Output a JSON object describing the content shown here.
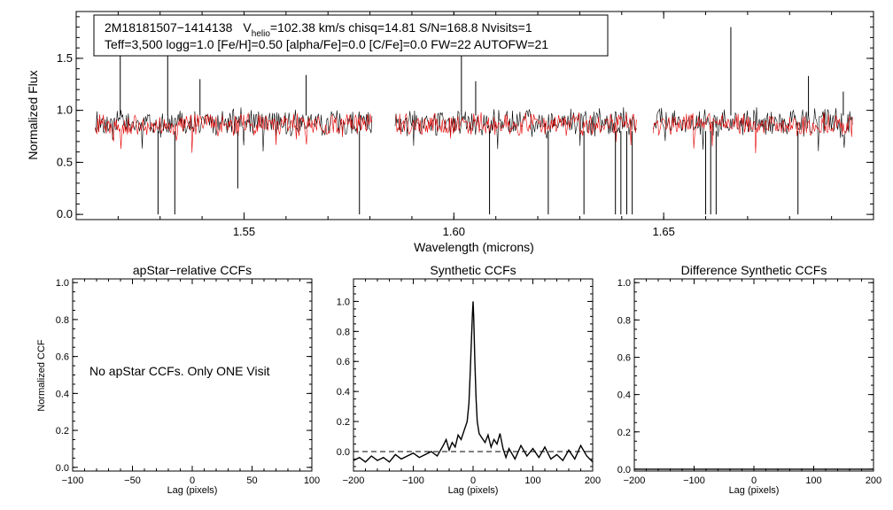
{
  "colors": {
    "observed": "#000000",
    "model": "#e60000",
    "axes": "#000000",
    "background": "#ffffff"
  },
  "spectrum_panel": {
    "info_line1": {
      "star": "2M18181507−1414138",
      "v_label": "V",
      "v_sub": "helio",
      "v_rest": "=102.38 km/s  chisq=14.81  S/N=168.8  Nvisits=1"
    },
    "info_line2": "Teff=3,500 logg=1.0 [Fe/H]=0.50 [alpha/Fe]=0.0 [C/Fe]=0.0 FW=22 AUTOFW=21"
  },
  "apstar_panel": {
    "message": "No apStar CCFs.  Only ONE Visit"
  },
  "chart_data": [
    {
      "type": "line",
      "title": "",
      "xlabel": "Wavelength (microns)",
      "ylabel": "Normalized Flux",
      "xlim": [
        1.51,
        1.7
      ],
      "ylim": [
        -0.05,
        1.95
      ],
      "xticks": [
        1.55,
        1.6,
        1.65
      ],
      "xtick_labels": [
        "1.55",
        "1.60",
        "1.65"
      ],
      "yticks": [
        0.0,
        0.5,
        1.0,
        1.5
      ],
      "ytick_labels": [
        "0.0",
        "0.5",
        "1.0",
        "1.5"
      ],
      "detectors": [
        [
          1.5145,
          1.5805
        ],
        [
          1.586,
          1.6435
        ],
        [
          1.6475,
          1.695
        ]
      ],
      "series": [
        {
          "name": "observed",
          "color": "#000000",
          "continuum": 0.95,
          "scatter": 0.11
        },
        {
          "name": "model",
          "color": "#e60000",
          "continuum": 0.92,
          "scatter": 0.09
        }
      ],
      "emission_spikes": [
        {
          "x": 1.5205,
          "y": 1.58
        },
        {
          "x": 1.5318,
          "y": 1.52
        },
        {
          "x": 1.5395,
          "y": 1.3
        },
        {
          "x": 1.5648,
          "y": 1.34
        },
        {
          "x": 1.6018,
          "y": 1.63
        },
        {
          "x": 1.6052,
          "y": 1.28
        },
        {
          "x": 1.666,
          "y": 1.8
        },
        {
          "x": 1.6845,
          "y": 1.33
        },
        {
          "x": 1.6928,
          "y": 1.18
        }
      ],
      "absorption_dips": [
        {
          "x": 1.5295,
          "y": 0.0
        },
        {
          "x": 1.5335,
          "y": 0.0
        },
        {
          "x": 1.5485,
          "y": 0.25
        },
        {
          "x": 1.5775,
          "y": 0.0
        },
        {
          "x": 1.6085,
          "y": 0.0
        },
        {
          "x": 1.6225,
          "y": 0.0
        },
        {
          "x": 1.631,
          "y": 0.0
        },
        {
          "x": 1.6385,
          "y": 0.0
        },
        {
          "x": 1.6398,
          "y": 0.0
        },
        {
          "x": 1.6412,
          "y": 0.0
        },
        {
          "x": 1.6425,
          "y": 0.0
        },
        {
          "x": 1.66,
          "y": 0.0
        },
        {
          "x": 1.6612,
          "y": 0.0
        },
        {
          "x": 1.6625,
          "y": 0.0
        },
        {
          "x": 1.682,
          "y": 0.0
        }
      ]
    },
    {
      "type": "line",
      "title": "apStar−relative CCFs",
      "xlabel": "Lag (pixels)",
      "ylabel": "Normalized CCF",
      "xlim": [
        -100,
        100
      ],
      "ylim": [
        -0.02,
        1.02
      ],
      "xticks": [
        -100,
        -50,
        0,
        50,
        100
      ],
      "xtick_labels": [
        "−100",
        "−50",
        "0",
        "50",
        "100"
      ],
      "yticks": [
        0.0,
        0.2,
        0.4,
        0.6,
        0.8,
        1.0
      ],
      "ytick_labels": [
        "0.0",
        "0.2",
        "0.4",
        "0.6",
        "0.8",
        "1.0"
      ],
      "series": []
    },
    {
      "type": "line",
      "title": "Synthetic CCFs",
      "xlabel": "Lag (pixels)",
      "ylabel": "",
      "xlim": [
        -200,
        200
      ],
      "ylim": [
        -0.13,
        1.15
      ],
      "xticks": [
        -200,
        -100,
        0,
        100,
        200
      ],
      "xtick_labels": [
        "−200",
        "−100",
        "0",
        "100",
        "200"
      ],
      "yticks": [
        0.0,
        0.2,
        0.4,
        0.6,
        0.8,
        1.0
      ],
      "ytick_labels": [
        "0.0",
        "0.2",
        "0.4",
        "0.6",
        "0.8",
        "1.0"
      ],
      "baseline": 0.0,
      "series": [
        {
          "name": "synthetic ccf",
          "color": "#000000",
          "x": [
            -200,
            -190,
            -180,
            -170,
            -160,
            -150,
            -140,
            -130,
            -120,
            -110,
            -100,
            -90,
            -80,
            -70,
            -60,
            -50,
            -45,
            -40,
            -35,
            -30,
            -25,
            -20,
            -15,
            -10,
            -7,
            -5,
            -3,
            -1,
            0,
            1,
            3,
            5,
            7,
            10,
            15,
            20,
            25,
            30,
            35,
            40,
            45,
            50,
            55,
            60,
            70,
            80,
            90,
            100,
            110,
            120,
            130,
            140,
            150,
            160,
            170,
            180,
            190,
            200
          ],
          "y": [
            -0.06,
            -0.04,
            -0.07,
            -0.03,
            -0.06,
            -0.04,
            -0.07,
            -0.02,
            -0.05,
            -0.03,
            -0.01,
            -0.04,
            -0.02,
            0.0,
            -0.03,
            0.04,
            0.08,
            0.01,
            0.06,
            0.03,
            0.11,
            0.08,
            0.14,
            0.2,
            0.32,
            0.5,
            0.72,
            0.92,
            1.0,
            0.9,
            0.6,
            0.35,
            0.2,
            0.12,
            0.09,
            0.06,
            0.11,
            0.03,
            0.08,
            0.05,
            0.12,
            0.02,
            -0.04,
            0.02,
            -0.05,
            0.04,
            -0.03,
            0.02,
            -0.04,
            0.03,
            -0.05,
            -0.02,
            -0.06,
            0.01,
            -0.05,
            0.04,
            -0.03,
            -0.07
          ]
        }
      ]
    },
    {
      "type": "line",
      "title": "Difference Synthetic CCFs",
      "xlabel": "Lag (pixels)",
      "ylabel": "",
      "xlim": [
        -200,
        200
      ],
      "ylim": [
        -0.01,
        1.02
      ],
      "xticks": [
        -200,
        -100,
        0,
        100,
        200
      ],
      "xtick_labels": [
        "−200",
        "−100",
        "0",
        "100",
        "200"
      ],
      "yticks": [
        0.0,
        0.2,
        0.4,
        0.6,
        0.8,
        1.0
      ],
      "ytick_labels": [
        "0.0",
        "0.2",
        "0.4",
        "0.6",
        "0.8",
        "1.0"
      ],
      "series": [
        {
          "name": "difference ccf",
          "color": "#000000",
          "x": [
            -200,
            200
          ],
          "y": [
            0.0,
            0.0
          ]
        }
      ]
    }
  ]
}
